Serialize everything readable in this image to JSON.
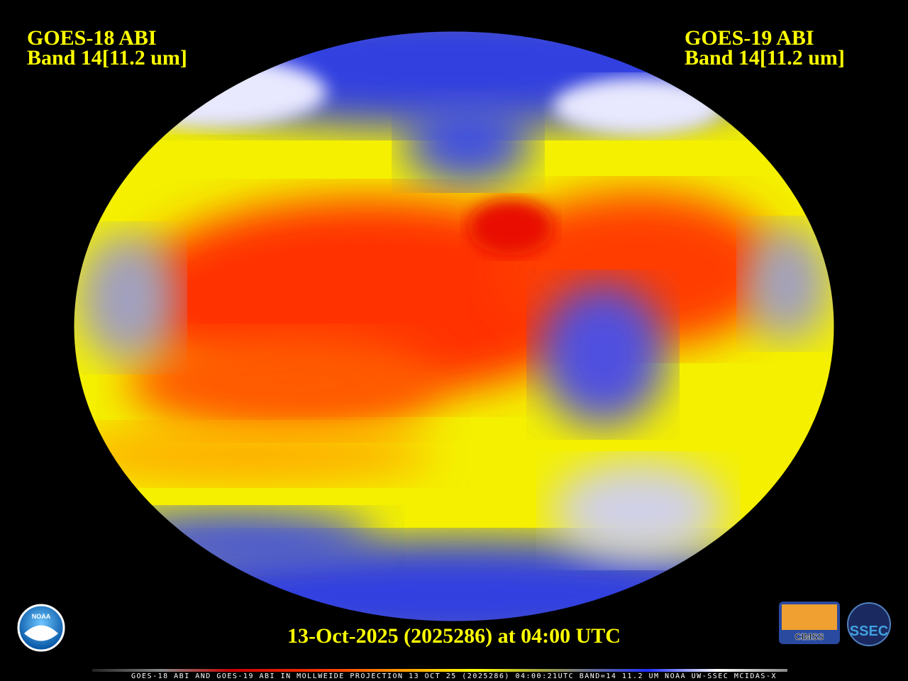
{
  "left_label": [
    "GOES-18 ABI",
    "Band 14[11.2 um]"
  ],
  "right_label": [
    "GOES-19 ABI",
    "Band 14[11.2 um]"
  ],
  "timestamp": "13-Oct-2025 (2025286) at 04:00 UTC",
  "footer": "GOES-18 ABI AND GOES-19 ABI IN MOLLWEIDE PROJECTION 13 OCT 25 (2025286) 04:00:21UTC BAND=14 11.2 UM NOAA UW-SSEC MCIDAS-X",
  "logos": {
    "noaa": "NOAA",
    "cimss": "CIMSS",
    "ssec": "SSEC"
  }
}
